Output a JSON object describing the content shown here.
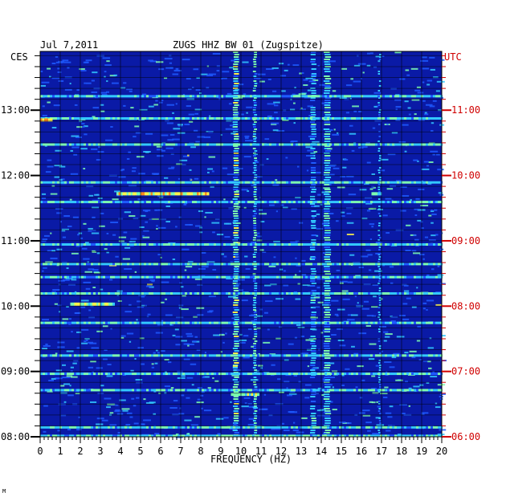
{
  "chart_data": {
    "type": "heatmap",
    "header_left": "Jul 7,2011",
    "title": "ZUGS HHZ BW 01 (Zugspitze)",
    "left_axis_label": "CES",
    "right_axis_label": "UTC",
    "xlabel": "FREQUENCY (HZ)",
    "xlim": [
      0,
      20
    ],
    "x_ticks": [
      "0",
      "1",
      "2",
      "3",
      "4",
      "5",
      "6",
      "7",
      "8",
      "9",
      "10",
      "11",
      "12",
      "13",
      "14",
      "15",
      "16",
      "17",
      "18",
      "19",
      "20"
    ],
    "time_range_local_hours": [
      8,
      13.9
    ],
    "left_ticks": [
      {
        "hour": 13,
        "label": "13:00"
      },
      {
        "hour": 12,
        "label": "12:00"
      },
      {
        "hour": 11,
        "label": "11:00"
      },
      {
        "hour": 10,
        "label": "10:00"
      },
      {
        "hour": 9,
        "label": "09:00"
      },
      {
        "hour": 8,
        "label": "08:00"
      }
    ],
    "right_ticks": [
      {
        "hour": 13,
        "label": "11:00"
      },
      {
        "hour": 12,
        "label": "10:00"
      },
      {
        "hour": 11,
        "label": "09:00"
      },
      {
        "hour": 10,
        "label": "08:00"
      },
      {
        "hour": 9,
        "label": "07:00"
      },
      {
        "hour": 8,
        "label": "06:00"
      }
    ],
    "background_color": "#0a1aa6",
    "colormap": [
      "#0a1aa6",
      "#1f5bff",
      "#33c8ff",
      "#7dffb0",
      "#fff34a",
      "#ff8a1c",
      "#e0141c"
    ],
    "persistent_bands_hz": [
      {
        "center": 9.75,
        "width": 0.25,
        "intensity": 0.55
      },
      {
        "center": 10.7,
        "width": 0.15,
        "intensity": 0.45
      },
      {
        "center": 13.6,
        "width": 0.25,
        "intensity": 0.35
      },
      {
        "center": 14.3,
        "width": 0.3,
        "intensity": 0.45
      },
      {
        "center": 16.9,
        "width": 0.1,
        "intensity": 0.3
      }
    ],
    "broadband_events_local_hours": [
      13.22,
      12.88,
      12.48,
      11.9,
      11.6,
      10.95,
      10.65,
      10.45,
      10.2,
      9.75,
      9.25,
      8.97,
      8.72,
      8.15,
      8.02
    ],
    "localized_events": [
      {
        "hour": 11.72,
        "f_start": 3.8,
        "f_end": 8.3,
        "intensity": 0.75
      },
      {
        "hour": 11.72,
        "f_start": 16.5,
        "f_end": 17.0,
        "intensity": 0.5
      },
      {
        "hour": 10.03,
        "f_start": 1.5,
        "f_end": 3.7,
        "intensity": 0.6
      },
      {
        "hour": 12.85,
        "f_start": 0.0,
        "f_end": 0.6,
        "intensity": 0.85
      },
      {
        "hour": 8.65,
        "f_start": 9.5,
        "f_end": 10.8,
        "intensity": 0.6
      }
    ],
    "grid": true
  },
  "footer_mark": "M"
}
